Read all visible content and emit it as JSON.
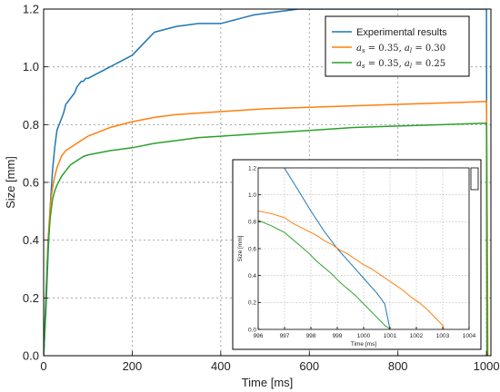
{
  "chart_data": [
    {
      "type": "line",
      "xlabel": "Time [ms]",
      "ylabel": "Size [mm]",
      "xlim": [
        0,
        1010
      ],
      "ylim": [
        0,
        1.2
      ],
      "xticks": [
        0,
        200,
        400,
        600,
        800,
        1000
      ],
      "xtick_labels": [
        "0",
        "200",
        "400",
        "600",
        "800",
        "1000"
      ],
      "yticks": [
        0,
        0.2,
        0.4,
        0.6,
        0.8,
        1.0,
        1.2
      ],
      "ytick_labels": [
        "0.0",
        "0.2",
        "0.4",
        "0.6",
        "0.8",
        "1.0",
        "1.2"
      ],
      "grid": true,
      "legend": "top-right",
      "series": [
        {
          "name": "Experimental results",
          "color": "#1f77b4",
          "x": [
            0,
            5,
            10,
            15,
            20,
            25,
            30,
            35,
            40,
            45,
            50,
            55,
            60,
            65,
            70,
            75,
            80,
            85,
            90,
            95,
            100,
            125,
            150,
            175,
            200,
            225,
            250,
            275,
            300,
            325,
            350,
            375,
            400,
            425,
            450,
            475,
            500,
            525,
            550,
            575,
            597,
            1000,
            1000.5,
            1000.9,
            1001
          ],
          "y": [
            0,
            0.15,
            0.35,
            0.52,
            0.64,
            0.72,
            0.78,
            0.8,
            0.82,
            0.84,
            0.87,
            0.88,
            0.89,
            0.9,
            0.91,
            0.93,
            0.94,
            0.95,
            0.95,
            0.96,
            0.96,
            0.98,
            1.0,
            1.02,
            1.04,
            1.08,
            1.12,
            1.13,
            1.14,
            1.145,
            1.15,
            1.15,
            1.15,
            1.16,
            1.17,
            1.18,
            1.185,
            1.19,
            1.195,
            1.2,
            1.2,
            1.2,
            0.6,
            0.2,
            0.0
          ]
        },
        {
          "name": "a_s = 0.35, a_l = 0.30",
          "color": "#ff7f0e",
          "x": [
            0,
            5,
            10,
            15,
            20,
            25,
            30,
            40,
            50,
            60,
            70,
            80,
            90,
            100,
            150,
            200,
            250,
            300,
            350,
            400,
            500,
            600,
            700,
            800,
            900,
            1000,
            1000.5,
            1001.5,
            1002.5,
            1003
          ],
          "y": [
            0,
            0.2,
            0.4,
            0.52,
            0.58,
            0.62,
            0.65,
            0.69,
            0.71,
            0.72,
            0.73,
            0.74,
            0.75,
            0.76,
            0.79,
            0.81,
            0.825,
            0.835,
            0.84,
            0.845,
            0.855,
            0.86,
            0.865,
            0.87,
            0.875,
            0.88,
            0.76,
            0.5,
            0.2,
            0.0
          ]
        },
        {
          "name": "a_s = 0.35, a_l = 0.25",
          "color": "#2ca02c",
          "x": [
            0,
            5,
            10,
            15,
            20,
            25,
            30,
            40,
            50,
            60,
            70,
            80,
            90,
            100,
            150,
            200,
            250,
            300,
            350,
            400,
            500,
            600,
            700,
            800,
            900,
            1000,
            1000.3,
            1000.8,
            1001.2,
            1001.6
          ],
          "y": [
            0,
            0.2,
            0.38,
            0.48,
            0.54,
            0.57,
            0.59,
            0.62,
            0.64,
            0.66,
            0.67,
            0.68,
            0.69,
            0.695,
            0.71,
            0.72,
            0.735,
            0.745,
            0.755,
            0.76,
            0.77,
            0.78,
            0.79,
            0.795,
            0.8,
            0.805,
            0.72,
            0.45,
            0.2,
            0.0
          ]
        }
      ]
    },
    {
      "type": "line",
      "xlabel": "Time [ms]",
      "ylabel": "Size [mm]",
      "xlim": [
        996,
        1004
      ],
      "ylim": [
        0,
        1.2
      ],
      "xticks": [
        996,
        997,
        998,
        999,
        1000,
        1001,
        1002,
        1003,
        1004
      ],
      "xtick_labels": [
        "996",
        "997",
        "998",
        "999",
        "1000",
        "1001",
        "1002",
        "1003",
        "1004"
      ],
      "yticks": [
        0,
        0.2,
        0.4,
        0.6,
        0.8,
        1.0,
        1.2
      ],
      "ytick_labels": [
        "0.0",
        "0.2",
        "0.4",
        "0.6",
        "0.8",
        "1.0",
        "1.2"
      ],
      "grid": true,
      "series": [
        {
          "color": "#1f77b4",
          "x": [
            996.99,
            997.5,
            998.0,
            998.5,
            999.0,
            999.5,
            1000.0,
            1000.5,
            1000.8,
            1001.0
          ],
          "y": [
            1.2,
            1.04,
            0.88,
            0.73,
            0.6,
            0.49,
            0.38,
            0.27,
            0.19,
            0.0
          ]
        },
        {
          "color": "#ff7f0e",
          "x": [
            996.0,
            996.5,
            997.0,
            997.3,
            997.6,
            997.9,
            998.2,
            998.5,
            998.8,
            999.1,
            999.4,
            999.7,
            1000.0,
            1000.3,
            1000.6,
            1000.9,
            1001.2,
            1001.5,
            1001.8,
            1002.1,
            1002.4,
            1002.7,
            1003.0,
            1003.05
          ],
          "y": [
            0.88,
            0.86,
            0.83,
            0.79,
            0.76,
            0.73,
            0.7,
            0.66,
            0.63,
            0.59,
            0.56,
            0.52,
            0.48,
            0.45,
            0.41,
            0.37,
            0.33,
            0.29,
            0.24,
            0.2,
            0.15,
            0.09,
            0.03,
            0.0
          ]
        },
        {
          "color": "#2ca02c",
          "x": [
            996.0,
            996.5,
            997.0,
            997.3,
            997.6,
            997.9,
            998.2,
            998.5,
            998.8,
            999.1,
            999.4,
            999.7,
            1000.0,
            1000.2,
            1000.4,
            1000.6,
            1000.8,
            1000.95,
            1001.0
          ],
          "y": [
            0.81,
            0.77,
            0.72,
            0.67,
            0.62,
            0.57,
            0.51,
            0.46,
            0.41,
            0.35,
            0.3,
            0.25,
            0.19,
            0.15,
            0.11,
            0.07,
            0.03,
            0.01,
            0.0
          ]
        }
      ]
    }
  ]
}
